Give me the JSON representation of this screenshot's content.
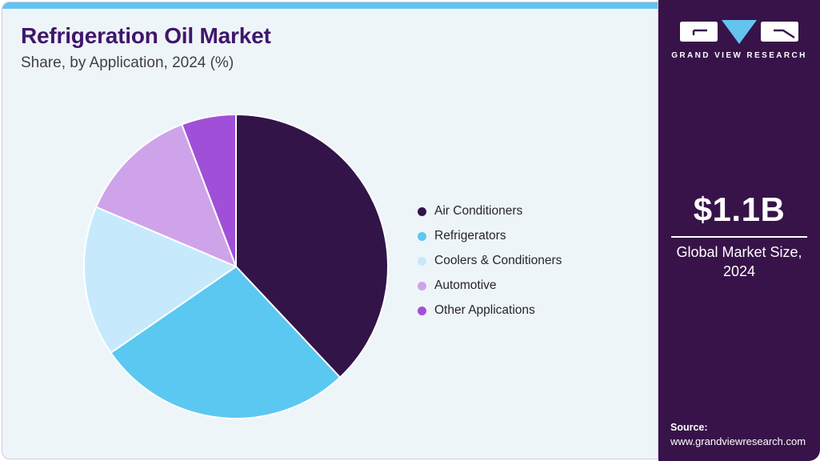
{
  "header": {
    "title": "Refrigeration Oil Market",
    "subtitle": "Share, by Application, 2024 (%)"
  },
  "chart_data": {
    "type": "pie",
    "title": "Refrigeration Oil Market Share, by Application, 2024 (%)",
    "unit": "%",
    "categories": [
      "Air Conditioners",
      "Refrigerators",
      "Coolers & Conditioners",
      "Automotive",
      "Other Applications"
    ],
    "values": [
      38,
      27.4,
      16,
      12.8,
      5.8
    ],
    "colors": [
      "#321449",
      "#5bc8f2",
      "#c6eafb",
      "#cfa3e9",
      "#a050d8"
    ],
    "start_angle_deg": -90,
    "direction": "clockwise",
    "legend_position": "right",
    "data_labels_shown": false
  },
  "sidebar": {
    "brand_name": "GRAND VIEW RESEARCH",
    "stat_value": "$1.1B",
    "stat_label": "Global Market Size, 2024",
    "source_label": "Source:",
    "source_url": "www.grandviewresearch.com"
  },
  "theme": {
    "top_bar_color": "#63c4ef",
    "card_background": "#eef5f9",
    "sidebar_background": "#371349",
    "title_color": "#40166b",
    "accent_blue": "#63c4ef",
    "slice_separator": "#ffffff"
  }
}
